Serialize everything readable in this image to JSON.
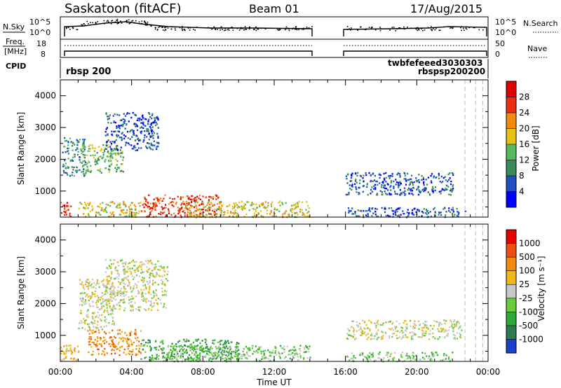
{
  "header": {
    "station": "Saskatoon (fitACF)",
    "beam": "Beam 01",
    "date": "17/Aug/2015"
  },
  "top_panels": {
    "nsky_label": "N.Sky",
    "nsearch_label": "N.Search",
    "freq_label_1": "Freq.",
    "freq_label_2": "[MHz]",
    "nave_label": "Nave",
    "cpid_label": "CPID",
    "cpid_value": "rbsp 200",
    "nsky_ticks": [
      "10^5",
      "10^0"
    ],
    "freq_ticks": [
      "18",
      "8"
    ],
    "nave_ticks": [
      "50",
      "0"
    ],
    "cpid_cluster_top": "twbfefeeed3030303",
    "cpid_cluster_bottom": "rbspsp200200"
  },
  "chart_data": [
    {
      "type": "heatmap",
      "title": "",
      "xlabel": "",
      "ylabel": "Slant Range [km]",
      "colorbar_label": "Power [dB]",
      "colorbar_ticks": [
        4,
        8,
        12,
        16,
        20,
        24,
        28
      ],
      "colorbar_colors": [
        "#0000ff",
        "#2050c0",
        "#3a8a5a",
        "#5ab860",
        "#e8c010",
        "#f08a10",
        "#e83010",
        "#e00000"
      ],
      "ylim": [
        180,
        4500
      ],
      "yticks": [
        1000,
        2000,
        3000,
        4000
      ],
      "xlim_hours": [
        0,
        24
      ],
      "data_gap_hours": [
        14,
        16
      ],
      "regions": [
        {
          "t0": 0.0,
          "t1": 0.6,
          "r0": 200,
          "r1": 700,
          "level": 6
        },
        {
          "t0": 0.1,
          "t1": 1.4,
          "r0": 1500,
          "r1": 2700,
          "level": 2
        },
        {
          "t0": 1.2,
          "t1": 3.5,
          "r0": 1600,
          "r1": 2500,
          "level": 3
        },
        {
          "t0": 2.5,
          "t1": 5.5,
          "r0": 2300,
          "r1": 3500,
          "level": 1
        },
        {
          "t0": 1.0,
          "t1": 4.5,
          "r0": 200,
          "r1": 700,
          "level": 4
        },
        {
          "t0": 4.5,
          "t1": 9.0,
          "r0": 200,
          "r1": 900,
          "level": 6
        },
        {
          "t0": 7.0,
          "t1": 14.0,
          "r0": 200,
          "r1": 700,
          "level": 4
        },
        {
          "t0": 16.0,
          "t1": 22.7,
          "r0": 200,
          "r1": 500,
          "level": 1
        },
        {
          "t0": 16.0,
          "t1": 22.0,
          "r0": 900,
          "r1": 1600,
          "level": 1
        }
      ]
    },
    {
      "type": "heatmap",
      "title": "",
      "xlabel": "Time UT",
      "ylabel": "Slant Range [km]",
      "colorbar_label": "Velocity [m s⁻¹]",
      "colorbar_ticks": [
        1000,
        500,
        100,
        25,
        -25,
        -100,
        -500,
        -1000
      ],
      "colorbar_colors": [
        "#1a3fc8",
        "#2f7a52",
        "#2eaa3a",
        "#6acb3c",
        "#c8c8c8",
        "#f0b818",
        "#f08a10",
        "#ec5010",
        "#e80000"
      ],
      "ylim": [
        180,
        4500
      ],
      "yticks": [
        1000,
        2000,
        3000,
        4000
      ],
      "xlim_hours": [
        0,
        24
      ],
      "xticks": [
        "00:00",
        "04:00",
        "08:00",
        "12:00",
        "16:00",
        "20:00",
        "00:00"
      ],
      "data_gap_hours": [
        14,
        16
      ],
      "regions": [
        {
          "t0": 0.0,
          "t1": 1.0,
          "r0": 200,
          "r1": 800,
          "level": 5
        },
        {
          "t0": 1.0,
          "t1": 3.0,
          "r0": 1200,
          "r1": 2800,
          "level": 4
        },
        {
          "t0": 2.5,
          "t1": 6.0,
          "r0": 1800,
          "r1": 3400,
          "level": 4
        },
        {
          "t0": 1.5,
          "t1": 4.5,
          "r0": 400,
          "r1": 1200,
          "level": 6
        },
        {
          "t0": 4.5,
          "t1": 10.0,
          "r0": 200,
          "r1": 900,
          "level": 2
        },
        {
          "t0": 6.0,
          "t1": 14.0,
          "r0": 200,
          "r1": 700,
          "level": 3
        },
        {
          "t0": 16.0,
          "t1": 22.5,
          "r0": 900,
          "r1": 1500,
          "level": 4
        },
        {
          "t0": 16.0,
          "t1": 22.0,
          "r0": 200,
          "r1": 500,
          "level": 3
        }
      ]
    }
  ]
}
